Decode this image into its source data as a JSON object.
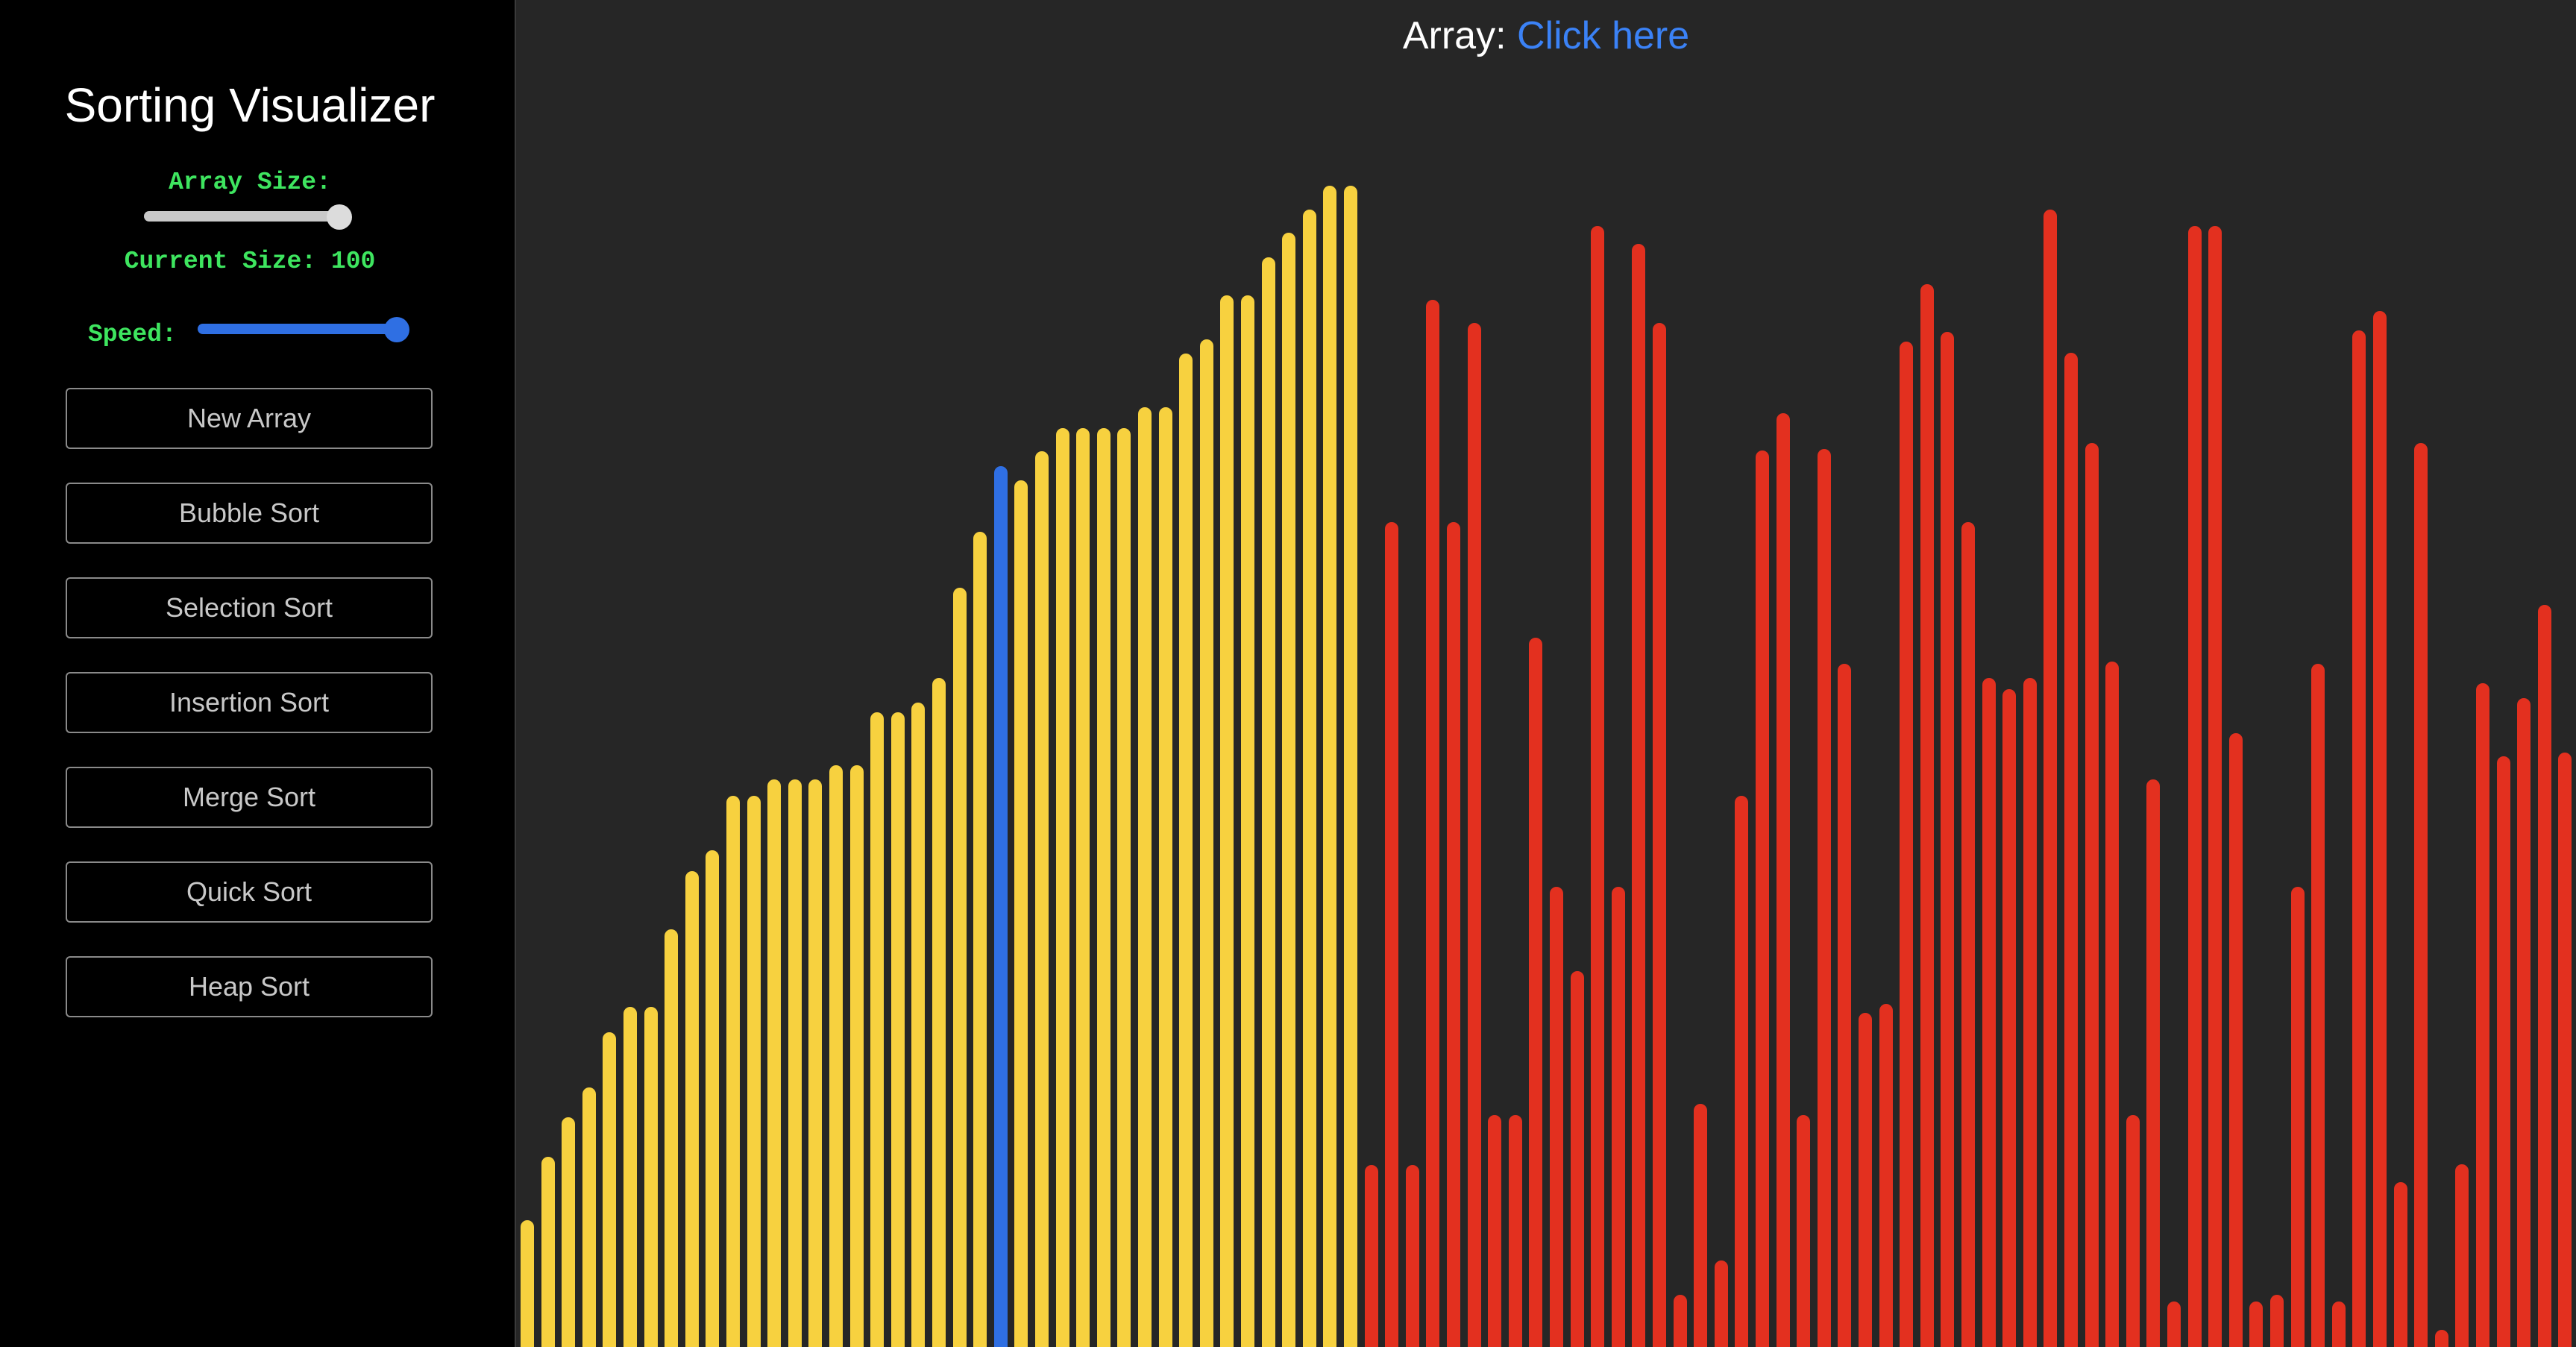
{
  "sidebar": {
    "title": "Sorting Visualizer",
    "array_size_label": "Array Size:",
    "current_size_label": "Current Size: 100",
    "speed_label": "Speed:",
    "array_size_value": 100,
    "speed_level": 1.0,
    "buttons": {
      "new_array": "New Array",
      "bubble_sort": "Bubble Sort",
      "selection_sort": "Selection Sort",
      "insertion_sort": "Insertion Sort",
      "merge_sort": "Merge Sort",
      "quick_sort": "Quick Sort",
      "heap_sort": "Heap Sort"
    }
  },
  "header": {
    "prefix": "Array:",
    "link": "Click here"
  },
  "colors": {
    "sorted": "#f7d13f",
    "unsorted": "#e3301f",
    "current": "#2f6fe3",
    "background": "#262626",
    "sidebar": "#000000",
    "label": "#3ee55f"
  },
  "array": {
    "max_value": 1000,
    "current_index": 23,
    "sorted_count": 41,
    "values": [
      104,
      156,
      188,
      213,
      258,
      279,
      279,
      342,
      390,
      407,
      452,
      452,
      465,
      465,
      465,
      477,
      477,
      520,
      520,
      528,
      548,
      622,
      668,
      722,
      710,
      734,
      753,
      753,
      753,
      753,
      770,
      770,
      814,
      826,
      862,
      862,
      893,
      913,
      932,
      952,
      952,
      149,
      676,
      149,
      858,
      676,
      839,
      190,
      190,
      581,
      377,
      308,
      919,
      377,
      904,
      839,
      43,
      199,
      71,
      452,
      735,
      765,
      190,
      736,
      560,
      274,
      281,
      824,
      871,
      832,
      676,
      548,
      539,
      548,
      932,
      815,
      741,
      562,
      190,
      465,
      37,
      919,
      919,
      503,
      37,
      43,
      377,
      560,
      37,
      833,
      849,
      135,
      741,
      14,
      150,
      544,
      484,
      532,
      608,
      487
    ]
  }
}
